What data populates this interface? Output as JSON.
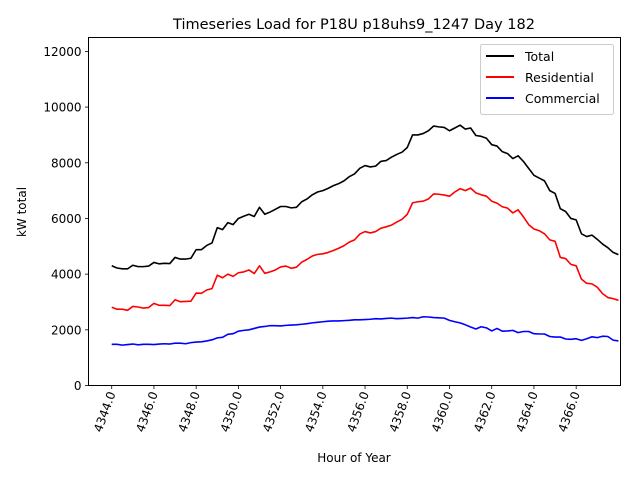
{
  "chart_data": {
    "type": "line",
    "title": "Timeseries Load for P18U p18uhs9_1247  Day 182",
    "xlabel": "Hour of Year",
    "ylabel": "kW total",
    "xlim": [
      4342.9,
      4368.1
    ],
    "ylim": [
      0,
      12500
    ],
    "xticks": [
      4344,
      4346,
      4348,
      4350,
      4352,
      4354,
      4356,
      4358,
      4360,
      4362,
      4364,
      4366
    ],
    "xtick_labels": [
      "4344.0",
      "4346.0",
      "4348.0",
      "4350.0",
      "4352.0",
      "4354.0",
      "4356.0",
      "4358.0",
      "4360.0",
      "4362.0",
      "4364.0",
      "4366.0"
    ],
    "yticks": [
      0,
      2000,
      4000,
      6000,
      8000,
      10000,
      12000
    ],
    "ytick_labels": [
      "0",
      "2000",
      "4000",
      "6000",
      "8000",
      "10000",
      "12000"
    ],
    "grid": false,
    "legend_position": "top-right",
    "x_start": 4344.0,
    "x_step": 0.25,
    "series": [
      {
        "name": "Total",
        "color": "#000000",
        "values": [
          4300,
          4220,
          4190,
          4190,
          4320,
          4270,
          4270,
          4290,
          4420,
          4370,
          4390,
          4380,
          4600,
          4540,
          4540,
          4570,
          4880,
          4880,
          5030,
          5120,
          5670,
          5600,
          5850,
          5780,
          6000,
          6080,
          6150,
          6070,
          6400,
          6150,
          6230,
          6330,
          6430,
          6430,
          6380,
          6400,
          6600,
          6700,
          6850,
          6950,
          7000,
          7080,
          7180,
          7250,
          7350,
          7500,
          7600,
          7800,
          7900,
          7850,
          7880,
          8050,
          8080,
          8200,
          8300,
          8380,
          8550,
          9000,
          9000,
          9050,
          9150,
          9320,
          9290,
          9270,
          9150,
          9250,
          9350,
          9210,
          9250,
          8980,
          8950,
          8880,
          8650,
          8600,
          8400,
          8330,
          8150,
          8250,
          8050,
          7800,
          7550,
          7450,
          7350,
          7000,
          6900,
          6350,
          6250,
          6000,
          5950,
          5450,
          5350,
          5400,
          5250,
          5080,
          4950,
          4780,
          4700
        ]
      },
      {
        "name": "Residential",
        "color": "#ff0000",
        "values": [
          2810,
          2740,
          2740,
          2700,
          2840,
          2820,
          2780,
          2800,
          2950,
          2880,
          2880,
          2870,
          3080,
          3010,
          3020,
          3030,
          3320,
          3310,
          3430,
          3480,
          3960,
          3870,
          4000,
          3920,
          4050,
          4080,
          4150,
          4020,
          4300,
          4030,
          4080,
          4150,
          4260,
          4290,
          4210,
          4250,
          4430,
          4530,
          4650,
          4710,
          4730,
          4780,
          4850,
          4930,
          5020,
          5150,
          5230,
          5440,
          5530,
          5480,
          5530,
          5650,
          5700,
          5760,
          5870,
          5970,
          6150,
          6560,
          6600,
          6620,
          6700,
          6880,
          6870,
          6840,
          6800,
          6950,
          7070,
          7000,
          7090,
          6920,
          6850,
          6800,
          6620,
          6550,
          6420,
          6370,
          6200,
          6310,
          6060,
          5780,
          5620,
          5560,
          5450,
          5230,
          5180,
          4600,
          4560,
          4350,
          4300,
          3820,
          3670,
          3650,
          3530,
          3300,
          3160,
          3120,
          3060
        ]
      },
      {
        "name": "Commercial",
        "color": "#0000ff",
        "values": [
          1480,
          1480,
          1450,
          1470,
          1490,
          1460,
          1480,
          1480,
          1470,
          1490,
          1500,
          1490,
          1520,
          1520,
          1500,
          1540,
          1560,
          1570,
          1600,
          1640,
          1710,
          1730,
          1840,
          1860,
          1950,
          1980,
          2000,
          2050,
          2100,
          2120,
          2150,
          2150,
          2140,
          2160,
          2170,
          2180,
          2200,
          2220,
          2250,
          2270,
          2290,
          2310,
          2320,
          2320,
          2330,
          2340,
          2360,
          2360,
          2370,
          2380,
          2400,
          2390,
          2410,
          2420,
          2400,
          2410,
          2420,
          2440,
          2420,
          2470,
          2460,
          2440,
          2430,
          2420,
          2340,
          2290,
          2250,
          2180,
          2100,
          2030,
          2110,
          2070,
          1960,
          2050,
          1950,
          1960,
          1980,
          1900,
          1940,
          1940,
          1860,
          1850,
          1850,
          1760,
          1740,
          1740,
          1670,
          1660,
          1680,
          1620,
          1680,
          1750,
          1720,
          1770,
          1760,
          1630,
          1600
        ]
      }
    ]
  }
}
